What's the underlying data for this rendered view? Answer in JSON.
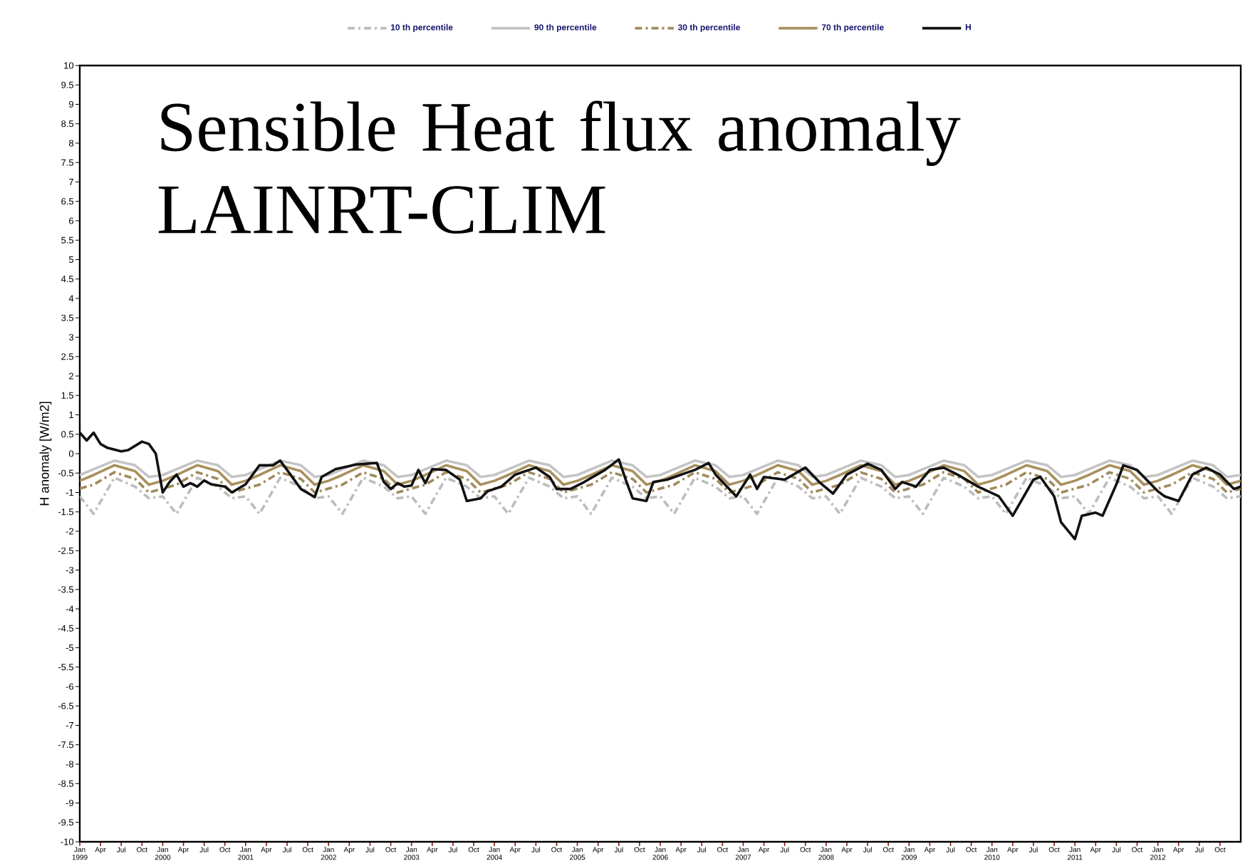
{
  "chart_data": {
    "type": "line",
    "title": "Sensible Heat flux anomaly LAINRT-CLIM",
    "ylabel": "H anomaly  [W/m2]",
    "legend": "top",
    "xlim": [
      "1999-01",
      "2013-01"
    ],
    "ylim": [
      -10,
      10
    ],
    "yticks": [
      -10,
      -9.5,
      -9,
      -8.5,
      -8,
      -7.5,
      -7,
      -6.5,
      -6,
      -5.5,
      -5,
      -4.5,
      -4,
      -3.5,
      -3,
      -2.5,
      -2,
      -1.5,
      -1,
      -0.5,
      0,
      0.5,
      1,
      1.5,
      2,
      2.5,
      3,
      3.5,
      4,
      4.5,
      5,
      5.5,
      6,
      6.5,
      7,
      7.5,
      8,
      8.5,
      9,
      9.5,
      10
    ],
    "xticks": [
      {
        "value": "1999-01",
        "label": "Jan 1999"
      },
      {
        "value": "1999-04",
        "label": "Apr"
      },
      {
        "value": "1999-07",
        "label": "Jul"
      },
      {
        "value": "1999-10",
        "label": "Oct"
      },
      {
        "value": "2000-01",
        "label": "Jan 2000"
      },
      {
        "value": "2000-04",
        "label": "Apr"
      },
      {
        "value": "2000-07",
        "label": "Jul"
      },
      {
        "value": "2000-10",
        "label": "Oct"
      },
      {
        "value": "2001-01",
        "label": "Jan 2001"
      },
      {
        "value": "2001-04",
        "label": "Apr"
      },
      {
        "value": "2001-07",
        "label": "Jul"
      },
      {
        "value": "2001-10",
        "label": "Oct"
      },
      {
        "value": "2002-01",
        "label": "Jan 2002"
      },
      {
        "value": "2002-04",
        "label": "Apr"
      },
      {
        "value": "2002-07",
        "label": "Jul"
      },
      {
        "value": "2002-10",
        "label": "Oct"
      },
      {
        "value": "2003-01",
        "label": "Jan 2003"
      },
      {
        "value": "2003-04",
        "label": "Apr"
      },
      {
        "value": "2003-07",
        "label": "Jul"
      },
      {
        "value": "2003-10",
        "label": "Oct"
      },
      {
        "value": "2004-01",
        "label": "Jan 2004"
      },
      {
        "value": "2004-04",
        "label": "Apr"
      },
      {
        "value": "2004-07",
        "label": "Jul"
      },
      {
        "value": "2004-10",
        "label": "Oct"
      },
      {
        "value": "2005-01",
        "label": "Jan 2005"
      },
      {
        "value": "2005-04",
        "label": "Apr"
      },
      {
        "value": "2005-07",
        "label": "Jul"
      },
      {
        "value": "2005-10",
        "label": "Oct"
      },
      {
        "value": "2006-01",
        "label": "Jan 2006"
      },
      {
        "value": "2006-04",
        "label": "Apr"
      },
      {
        "value": "2006-07",
        "label": "Jul"
      },
      {
        "value": "2006-10",
        "label": "Oct"
      },
      {
        "value": "2007-01",
        "label": "Jan 2007"
      },
      {
        "value": "2007-04",
        "label": "Apr"
      },
      {
        "value": "2007-07",
        "label": "Jul"
      },
      {
        "value": "2007-10",
        "label": "Oct"
      },
      {
        "value": "2008-01",
        "label": "Jan 2008"
      },
      {
        "value": "2008-04",
        "label": "Apr"
      },
      {
        "value": "2008-07",
        "label": "Jul"
      },
      {
        "value": "2008-10",
        "label": "Oct"
      },
      {
        "value": "2009-01",
        "label": "Jan 2009"
      },
      {
        "value": "2009-04",
        "label": "Apr"
      },
      {
        "value": "2009-07",
        "label": "Jul"
      },
      {
        "value": "2009-10",
        "label": "Oct"
      },
      {
        "value": "2010-01",
        "label": "Jan 2010"
      },
      {
        "value": "2010-04",
        "label": "Apr"
      },
      {
        "value": "2010-07",
        "label": "Jul"
      },
      {
        "value": "2010-10",
        "label": "Oct"
      },
      {
        "value": "2011-01",
        "label": "Jan 2011"
      },
      {
        "value": "2011-04",
        "label": "Apr"
      },
      {
        "value": "2011-07",
        "label": "Jul"
      },
      {
        "value": "2011-10",
        "label": "Oct"
      },
      {
        "value": "2012-01",
        "label": "Jan 2012"
      },
      {
        "value": "2012-04",
        "label": "Apr"
      },
      {
        "value": "2012-07",
        "label": "Jul"
      },
      {
        "value": "2012-10",
        "label": "Oct"
      }
    ],
    "x": [
      "1999-01",
      "1999-03",
      "1999-06",
      "1999-09",
      "1999-11",
      "2000-01",
      "2000-03",
      "2000-06",
      "2000-09",
      "2000-11",
      "2001-01",
      "2001-03",
      "2001-06",
      "2001-09",
      "2001-11",
      "2002-01",
      "2002-03",
      "2002-06",
      "2002-09",
      "2002-11",
      "2003-01",
      "2003-03",
      "2003-06",
      "2003-09",
      "2003-11",
      "2004-01",
      "2004-03",
      "2004-06",
      "2004-09",
      "2004-11",
      "2005-01",
      "2005-03",
      "2005-06",
      "2005-09",
      "2005-11",
      "2006-01",
      "2006-03",
      "2006-06",
      "2006-09",
      "2006-11",
      "2007-01",
      "2007-03",
      "2007-06",
      "2007-09",
      "2007-11",
      "2008-01",
      "2008-03",
      "2008-06",
      "2008-09",
      "2008-11",
      "2009-01",
      "2009-03",
      "2009-06",
      "2009-09",
      "2009-11",
      "2010-01",
      "2010-03",
      "2010-06",
      "2010-09",
      "2010-11",
      "2011-01",
      "2011-03",
      "2011-06",
      "2011-09",
      "2011-11",
      "2012-01",
      "2012-03",
      "2012-06",
      "2012-09",
      "2012-11",
      "2013-01"
    ],
    "series": [
      {
        "name": "10 th percentile",
        "color": "#bcbcbc",
        "line_style": "dashed",
        "values": [
          -1.1,
          -1.55,
          -0.62,
          -0.85,
          -1.15,
          -1.1,
          -1.55,
          -0.62,
          -0.85,
          -1.15,
          -1.1,
          -1.55,
          -0.62,
          -0.85,
          -1.15,
          -1.1,
          -1.55,
          -0.62,
          -0.85,
          -1.15,
          -1.1,
          -1.55,
          -0.62,
          -0.85,
          -1.15,
          -1.1,
          -1.55,
          -0.62,
          -0.85,
          -1.15,
          -1.1,
          -1.55,
          -0.62,
          -0.85,
          -1.15,
          -1.1,
          -1.55,
          -0.62,
          -0.85,
          -1.15,
          -1.1,
          -1.55,
          -0.62,
          -0.85,
          -1.15,
          -1.1,
          -1.55,
          -0.62,
          -0.85,
          -1.15,
          -1.1,
          -1.55,
          -0.62,
          -0.85,
          -1.15,
          -1.1,
          -1.55,
          -0.62,
          -0.85,
          -1.15,
          -1.1,
          -1.55,
          -0.62,
          -0.85,
          -1.15,
          -1.1,
          -1.55,
          -0.62,
          -0.85,
          -1.15,
          -1.1
        ]
      },
      {
        "name": "90 th percentile",
        "color": "#c4c4c4",
        "line_style": "solid",
        "values": [
          -0.55,
          -0.4,
          -0.18,
          -0.3,
          -0.6,
          -0.55,
          -0.4,
          -0.18,
          -0.3,
          -0.6,
          -0.55,
          -0.4,
          -0.18,
          -0.3,
          -0.6,
          -0.55,
          -0.4,
          -0.18,
          -0.3,
          -0.6,
          -0.55,
          -0.4,
          -0.18,
          -0.3,
          -0.6,
          -0.55,
          -0.4,
          -0.18,
          -0.3,
          -0.6,
          -0.55,
          -0.4,
          -0.18,
          -0.3,
          -0.6,
          -0.55,
          -0.4,
          -0.18,
          -0.3,
          -0.6,
          -0.55,
          -0.4,
          -0.18,
          -0.3,
          -0.6,
          -0.55,
          -0.4,
          -0.18,
          -0.3,
          -0.6,
          -0.55,
          -0.4,
          -0.18,
          -0.3,
          -0.6,
          -0.55,
          -0.4,
          -0.18,
          -0.3,
          -0.6,
          -0.55,
          -0.4,
          -0.18,
          -0.3,
          -0.6,
          -0.55,
          -0.4,
          -0.18,
          -0.3,
          -0.6,
          -0.55
        ]
      },
      {
        "name": "30 th percentile",
        "color": "#a08a5c",
        "line_style": "dashed",
        "values": [
          -0.9,
          -0.8,
          -0.48,
          -0.65,
          -1.0,
          -0.9,
          -0.8,
          -0.48,
          -0.65,
          -1.0,
          -0.9,
          -0.8,
          -0.48,
          -0.65,
          -1.0,
          -0.9,
          -0.8,
          -0.48,
          -0.65,
          -1.0,
          -0.9,
          -0.8,
          -0.48,
          -0.65,
          -1.0,
          -0.9,
          -0.8,
          -0.48,
          -0.65,
          -1.0,
          -0.9,
          -0.8,
          -0.48,
          -0.65,
          -1.0,
          -0.9,
          -0.8,
          -0.48,
          -0.65,
          -1.0,
          -0.9,
          -0.8,
          -0.48,
          -0.65,
          -1.0,
          -0.9,
          -0.8,
          -0.48,
          -0.65,
          -1.0,
          -0.9,
          -0.8,
          -0.48,
          -0.65,
          -1.0,
          -0.9,
          -0.8,
          -0.48,
          -0.65,
          -1.0,
          -0.9,
          -0.8,
          -0.48,
          -0.65,
          -1.0,
          -0.9,
          -0.8,
          -0.48,
          -0.65,
          -1.0,
          -0.9
        ]
      },
      {
        "name": "70 th percentile",
        "color": "#a8905e",
        "line_style": "solid",
        "values": [
          -0.7,
          -0.55,
          -0.3,
          -0.45,
          -0.8,
          -0.7,
          -0.55,
          -0.3,
          -0.45,
          -0.8,
          -0.7,
          -0.55,
          -0.3,
          -0.45,
          -0.8,
          -0.7,
          -0.55,
          -0.3,
          -0.45,
          -0.8,
          -0.7,
          -0.55,
          -0.3,
          -0.45,
          -0.8,
          -0.7,
          -0.55,
          -0.3,
          -0.45,
          -0.8,
          -0.7,
          -0.55,
          -0.3,
          -0.45,
          -0.8,
          -0.7,
          -0.55,
          -0.3,
          -0.45,
          -0.8,
          -0.7,
          -0.55,
          -0.3,
          -0.45,
          -0.8,
          -0.7,
          -0.55,
          -0.3,
          -0.45,
          -0.8,
          -0.7,
          -0.55,
          -0.3,
          -0.45,
          -0.8,
          -0.7,
          -0.55,
          -0.3,
          -0.45,
          -0.8,
          -0.7,
          -0.55,
          -0.3,
          -0.45,
          -0.8,
          -0.7,
          -0.55,
          -0.3,
          -0.45,
          -0.8,
          -0.7
        ]
      },
      {
        "name": "H",
        "color": "#111111",
        "line_style": "solid",
        "x": [
          "1999-01",
          "1999-02",
          "1999-03",
          "1999-04",
          "1999-05",
          "1999-07",
          "1999-08",
          "1999-10",
          "1999-11",
          "1999-12",
          "2000-01",
          "2000-02",
          "2000-03",
          "2000-04",
          "2000-05",
          "2000-06",
          "2000-07",
          "2000-08",
          "2000-10",
          "2000-11",
          "2001-01",
          "2001-03",
          "2001-05",
          "2001-06",
          "2001-07",
          "2001-09",
          "2001-11",
          "2001-12",
          "2002-02",
          "2002-05",
          "2002-08",
          "2002-09",
          "2002-10",
          "2002-11",
          "2002-12",
          "2003-01",
          "2003-02",
          "2003-03",
          "2003-04",
          "2003-06",
          "2003-08",
          "2003-09",
          "2003-11",
          "2003-12",
          "2004-02",
          "2004-04",
          "2004-07",
          "2004-09",
          "2004-10",
          "2004-12",
          "2005-02",
          "2005-05",
          "2005-07",
          "2005-08",
          "2005-09",
          "2005-11",
          "2005-12",
          "2006-02",
          "2006-05",
          "2006-06",
          "2006-08",
          "2006-09",
          "2006-12",
          "2007-02",
          "2007-03",
          "2007-04",
          "2007-07",
          "2007-10",
          "2007-12",
          "2008-02",
          "2008-04",
          "2008-07",
          "2008-09",
          "2008-11",
          "2008-12",
          "2009-02",
          "2009-04",
          "2009-06",
          "2009-08",
          "2009-11",
          "2010-02",
          "2010-04",
          "2010-07",
          "2010-08",
          "2010-10",
          "2010-11",
          "2011-01",
          "2011-02",
          "2011-04",
          "2011-05",
          "2011-07",
          "2011-08",
          "2011-10",
          "2012-01",
          "2012-02",
          "2012-04",
          "2012-06",
          "2012-08",
          "2012-10",
          "2012-12",
          "2013-01"
        ],
        "values": [
          0.54,
          0.34,
          0.54,
          0.25,
          0.15,
          0.06,
          0.09,
          0.31,
          0.25,
          0.0,
          -1.0,
          -0.73,
          -0.54,
          -0.85,
          -0.76,
          -0.85,
          -0.69,
          -0.79,
          -0.85,
          -1.0,
          -0.79,
          -0.3,
          -0.3,
          -0.18,
          -0.42,
          -0.91,
          -1.12,
          -0.6,
          -0.4,
          -0.28,
          -0.24,
          -0.73,
          -0.91,
          -0.76,
          -0.85,
          -0.82,
          -0.42,
          -0.76,
          -0.4,
          -0.42,
          -0.67,
          -1.22,
          -1.15,
          -0.97,
          -0.85,
          -0.54,
          -0.36,
          -0.6,
          -0.91,
          -0.91,
          -0.73,
          -0.42,
          -0.15,
          -0.67,
          -1.15,
          -1.22,
          -0.73,
          -0.67,
          -0.48,
          -0.42,
          -0.24,
          -0.54,
          -1.1,
          -0.54,
          -0.91,
          -0.6,
          -0.67,
          -0.36,
          -0.73,
          -1.03,
          -0.54,
          -0.26,
          -0.42,
          -0.91,
          -0.73,
          -0.85,
          -0.42,
          -0.36,
          -0.54,
          -0.85,
          -1.1,
          -1.6,
          -0.67,
          -0.6,
          -1.1,
          -1.77,
          -2.2,
          -1.6,
          -1.52,
          -1.6,
          -0.79,
          -0.3,
          -0.42,
          -0.97,
          -1.1,
          -1.22,
          -0.54,
          -0.36,
          -0.54,
          -0.91,
          -0.85
        ]
      }
    ]
  }
}
